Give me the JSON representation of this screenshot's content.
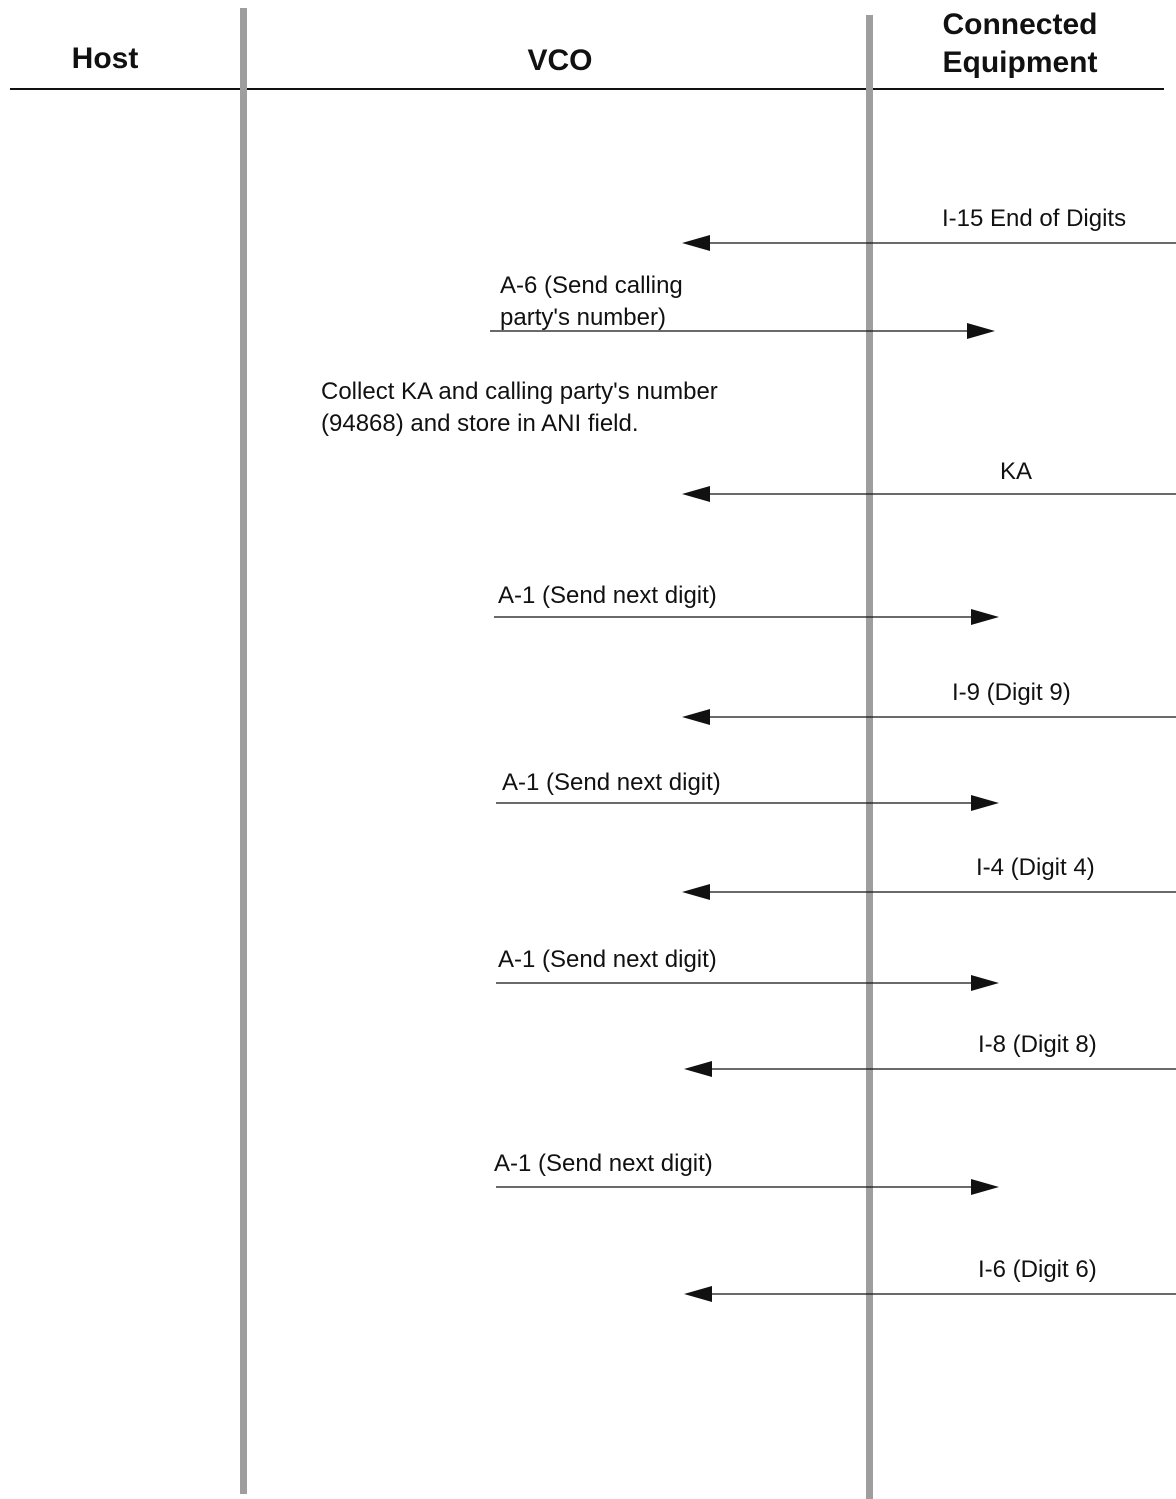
{
  "headers": {
    "host": "Host",
    "vco": "VCO",
    "connected_line1": "Connected",
    "connected_line2": "Equipment"
  },
  "messages": [
    {
      "label": "I-15 End of Digits",
      "direction": "to-vco"
    },
    {
      "label_line1": "A-6 (Send calling",
      "label_line2": "party's number)",
      "direction": "to-equipment"
    },
    {
      "label": "KA",
      "direction": "to-vco"
    },
    {
      "label": "A-1 (Send next digit)",
      "direction": "to-equipment"
    },
    {
      "label": "I-9 (Digit 9)",
      "direction": "to-vco"
    },
    {
      "label": "A-1 (Send next digit)",
      "direction": "to-equipment"
    },
    {
      "label": "I-4 (Digit 4)",
      "direction": "to-vco"
    },
    {
      "label": "A-1 (Send next digit)",
      "direction": "to-equipment"
    },
    {
      "label": "I-8 (Digit 8)",
      "direction": "to-vco"
    },
    {
      "label": "A-1 (Send next digit)",
      "direction": "to-equipment"
    },
    {
      "label": "I-6 (Digit 6)",
      "direction": "to-vco"
    }
  ],
  "notes": {
    "collect_line1": "Collect KA and calling party's number",
    "collect_line2": "(94868) and store in ANI field."
  }
}
